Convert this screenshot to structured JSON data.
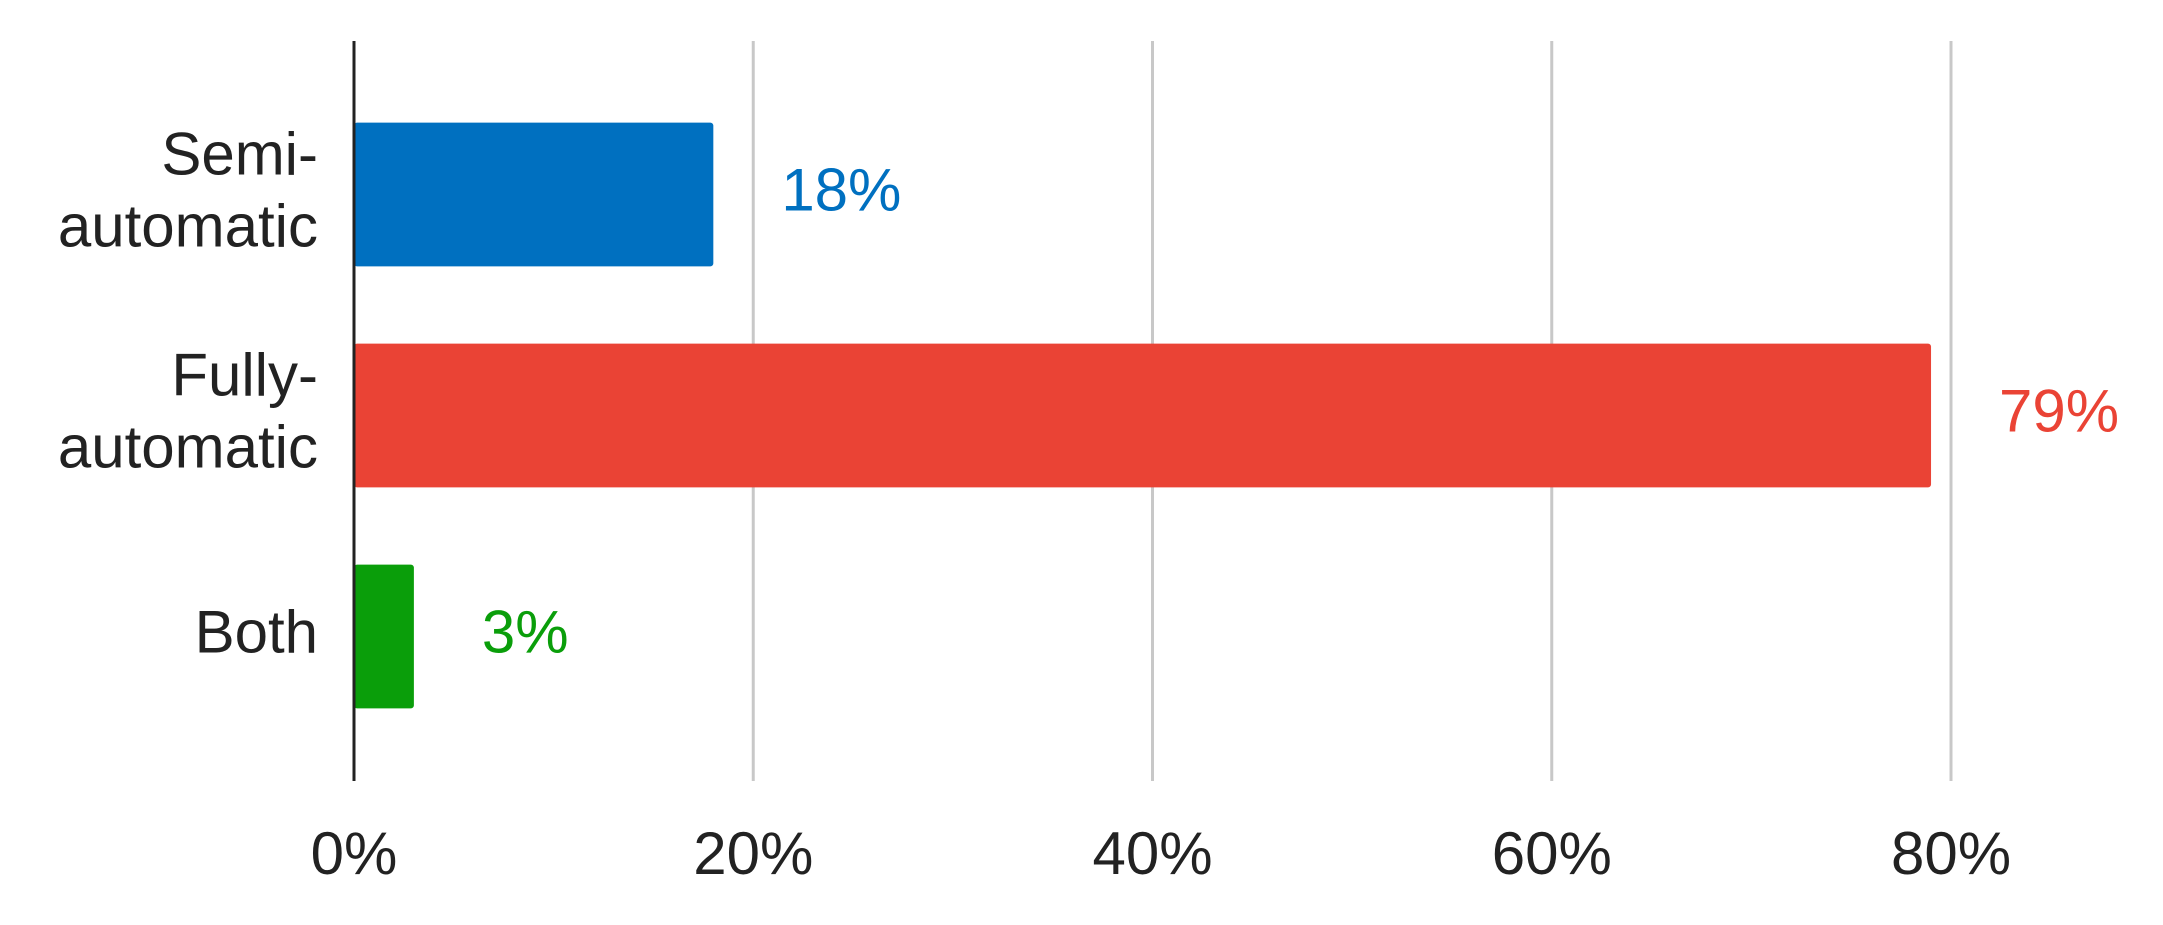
{
  "chart_data": {
    "type": "hbar",
    "categories": [
      "Semi-automatic",
      "Fully-automatic",
      "Both"
    ],
    "values": [
      18,
      79,
      3
    ],
    "value_labels": [
      "18%",
      "79%",
      "3%"
    ],
    "colors": [
      "#0070c0",
      "#ea4335",
      "#0a9e0a"
    ],
    "xlim": [
      0,
      80
    ],
    "xticks": [
      {
        "value": 0,
        "label": "0%"
      },
      {
        "value": 20,
        "label": "20%"
      },
      {
        "value": 40,
        "label": "40%"
      },
      {
        "value": 60,
        "label": "60%"
      },
      {
        "value": 80,
        "label": "80%"
      }
    ],
    "grid": true
  }
}
